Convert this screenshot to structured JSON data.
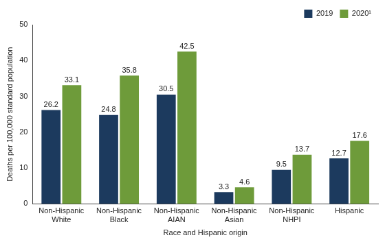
{
  "chart_data": {
    "type": "bar",
    "x_label": "Race and Hispanic origin",
    "y_label": "Deaths per 100,000 standard population",
    "categories": [
      "Non-Hispanic White",
      "Non-Hispanic Black",
      "Non-Hispanic AIAN",
      "Non-Hispanic Asian",
      "Non-Hispanic NHPI",
      "Hispanic"
    ],
    "series": [
      {
        "name": "2019",
        "color": "#1c3a5e",
        "values": [
          26.2,
          24.8,
          30.5,
          3.3,
          9.5,
          12.7
        ]
      },
      {
        "name": "2020¹",
        "color": "#6e9b3a",
        "values": [
          33.1,
          35.8,
          42.5,
          4.6,
          13.7,
          17.6
        ]
      }
    ],
    "ylim": [
      0,
      50
    ],
    "yticks": [
      0,
      10,
      20,
      30,
      40,
      50
    ],
    "grid": false,
    "legend": "upper right",
    "data_labels": true
  }
}
